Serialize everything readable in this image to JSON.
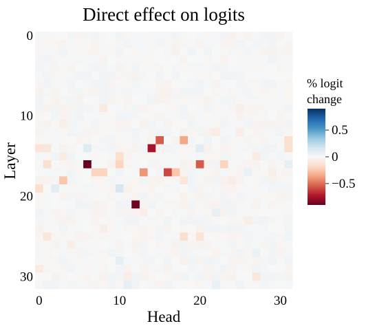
{
  "chart_data": {
    "type": "heatmap",
    "title": "Direct effect on logits",
    "xlabel": "Head",
    "ylabel": "Layer",
    "x_ticks": [
      0,
      10,
      20,
      30
    ],
    "y_ticks": [
      0,
      10,
      20,
      30
    ],
    "n_heads": 32,
    "n_layers": 32,
    "colorbar": {
      "title_lines": [
        "% logit",
        "change"
      ],
      "range": [
        -0.9,
        0.9
      ],
      "ticks": [
        0.5,
        0,
        -0.5
      ],
      "tick_labels": [
        "0.5",
        "0",
        "−0.5"
      ],
      "colormap": "RdBu",
      "colors": [
        "#67001f",
        "#b2182b",
        "#d6604d",
        "#f4a582",
        "#fddbc7",
        "#f7f7f7",
        "#d1e5f0",
        "#92c5de",
        "#4393c3",
        "#2166ac",
        "#053061"
      ]
    },
    "default_value": 0,
    "cells": [
      {
        "layer": 14,
        "head": 14,
        "value": -0.75
      },
      {
        "layer": 13,
        "head": 15,
        "value": -0.55
      },
      {
        "layer": 13,
        "head": 18,
        "value": -0.35
      },
      {
        "layer": 16,
        "head": 6,
        "value": -0.9
      },
      {
        "layer": 16,
        "head": 20,
        "value": -0.55
      },
      {
        "layer": 17,
        "head": 16,
        "value": -0.6
      },
      {
        "layer": 17,
        "head": 13,
        "value": -0.4
      },
      {
        "layer": 17,
        "head": 7,
        "value": -0.2
      },
      {
        "layer": 17,
        "head": 8,
        "value": -0.2
      },
      {
        "layer": 17,
        "head": 17,
        "value": -0.25
      },
      {
        "layer": 16,
        "head": 10,
        "value": -0.2
      },
      {
        "layer": 15,
        "head": 10,
        "value": -0.15
      },
      {
        "layer": 16,
        "head": 23,
        "value": -0.2
      },
      {
        "layer": 18,
        "head": 3,
        "value": -0.25
      },
      {
        "layer": 18,
        "head": 18,
        "value": -0.1
      },
      {
        "layer": 21,
        "head": 12,
        "value": -0.88
      },
      {
        "layer": 14,
        "head": 0,
        "value": -0.12
      },
      {
        "layer": 14,
        "head": 1,
        "value": -0.1
      },
      {
        "layer": 16,
        "head": 1,
        "value": -0.15
      },
      {
        "layer": 14,
        "head": 31,
        "value": -0.15
      },
      {
        "layer": 13,
        "head": 31,
        "value": -0.15
      },
      {
        "layer": 14,
        "head": 6,
        "value": 0.12
      },
      {
        "layer": 14,
        "head": 20,
        "value": 0.1
      },
      {
        "layer": 19,
        "head": 0,
        "value": -0.15
      },
      {
        "layer": 19,
        "head": 10,
        "value": 0.15
      },
      {
        "layer": 19,
        "head": 2,
        "value": 0.1
      },
      {
        "layer": 16,
        "head": 31,
        "value": 0.08
      },
      {
        "layer": 17,
        "head": 26,
        "value": 0.06
      },
      {
        "layer": 25,
        "head": 18,
        "value": -0.15
      },
      {
        "layer": 25,
        "head": 20,
        "value": -0.12
      },
      {
        "layer": 25,
        "head": 1,
        "value": -0.1
      },
      {
        "layer": 28,
        "head": 10,
        "value": 0.08
      },
      {
        "layer": 29,
        "head": 0,
        "value": -0.08
      },
      {
        "layer": 30,
        "head": 27,
        "value": -0.1
      },
      {
        "layer": 31,
        "head": 22,
        "value": 0.06
      },
      {
        "layer": 31,
        "head": 11,
        "value": 0.08
      },
      {
        "layer": 30,
        "head": 11,
        "value": -0.06
      },
      {
        "layer": 9,
        "head": 8,
        "value": -0.08
      },
      {
        "layer": 9,
        "head": 25,
        "value": -0.06
      },
      {
        "layer": 11,
        "head": 3,
        "value": -0.06
      },
      {
        "layer": 12,
        "head": 22,
        "value": -0.07
      },
      {
        "layer": 12,
        "head": 25,
        "value": -0.06
      },
      {
        "layer": 22,
        "head": 22,
        "value": 0.07
      },
      {
        "layer": 22,
        "head": 13,
        "value": -0.06
      },
      {
        "layer": 24,
        "head": 8,
        "value": -0.06
      },
      {
        "layer": 27,
        "head": 27,
        "value": 0.06
      },
      {
        "layer": 23,
        "head": 26,
        "value": -0.06
      },
      {
        "layer": 26,
        "head": 4,
        "value": -0.06
      },
      {
        "layer": 15,
        "head": 3,
        "value": -0.07
      },
      {
        "layer": 15,
        "head": 27,
        "value": -0.07
      },
      {
        "layer": 18,
        "head": 24,
        "value": -0.07
      },
      {
        "layer": 17,
        "head": 29,
        "value": -0.06
      }
    ]
  }
}
